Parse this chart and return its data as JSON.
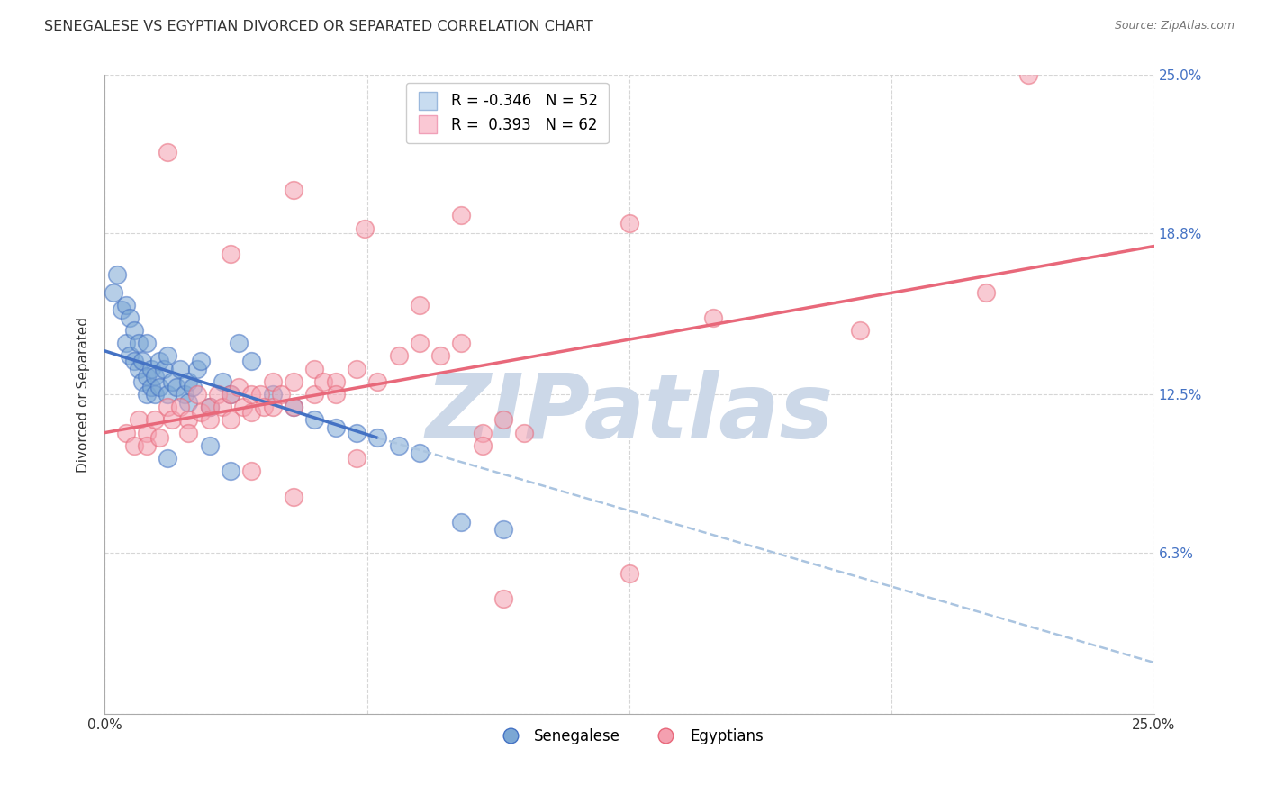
{
  "title": "SENEGALESE VS EGYPTIAN DIVORCED OR SEPARATED CORRELATION CHART",
  "source": "Source: ZipAtlas.com",
  "ylabel": "Divorced or Separated",
  "xmin": 0.0,
  "xmax": 25.0,
  "ymin": 0.0,
  "ymax": 25.0,
  "ytick_positions": [
    0.0,
    6.3,
    12.5,
    18.8,
    25.0
  ],
  "ytick_labels": [
    "",
    "6.3%",
    "12.5%",
    "18.8%",
    "25.0%"
  ],
  "xtick_positions": [
    0.0,
    6.25,
    12.5,
    18.75,
    25.0
  ],
  "xtick_labels": [
    "0.0%",
    "",
    "",
    "",
    "25.0%"
  ],
  "background_color": "#ffffff",
  "grid_color": "#cccccc",
  "watermark": "ZIPatlas",
  "watermark_color": "#ccd8e8",
  "blue_scatter": [
    [
      0.2,
      16.5
    ],
    [
      0.3,
      17.2
    ],
    [
      0.4,
      15.8
    ],
    [
      0.5,
      16.0
    ],
    [
      0.5,
      14.5
    ],
    [
      0.6,
      15.5
    ],
    [
      0.6,
      14.0
    ],
    [
      0.7,
      15.0
    ],
    [
      0.7,
      13.8
    ],
    [
      0.8,
      14.5
    ],
    [
      0.8,
      13.5
    ],
    [
      0.9,
      13.8
    ],
    [
      0.9,
      13.0
    ],
    [
      1.0,
      14.5
    ],
    [
      1.0,
      13.2
    ],
    [
      1.0,
      12.5
    ],
    [
      1.1,
      13.5
    ],
    [
      1.1,
      12.8
    ],
    [
      1.2,
      13.2
    ],
    [
      1.2,
      12.5
    ],
    [
      1.3,
      13.8
    ],
    [
      1.3,
      12.8
    ],
    [
      1.4,
      13.5
    ],
    [
      1.5,
      14.0
    ],
    [
      1.5,
      12.5
    ],
    [
      1.6,
      13.0
    ],
    [
      1.7,
      12.8
    ],
    [
      1.8,
      13.5
    ],
    [
      1.9,
      12.5
    ],
    [
      2.0,
      13.0
    ],
    [
      2.0,
      12.2
    ],
    [
      2.1,
      12.8
    ],
    [
      2.2,
      13.5
    ],
    [
      2.3,
      13.8
    ],
    [
      2.5,
      12.0
    ],
    [
      2.8,
      13.0
    ],
    [
      3.0,
      12.5
    ],
    [
      3.2,
      14.5
    ],
    [
      3.5,
      13.8
    ],
    [
      4.0,
      12.5
    ],
    [
      4.5,
      12.0
    ],
    [
      5.0,
      11.5
    ],
    [
      5.5,
      11.2
    ],
    [
      6.0,
      11.0
    ],
    [
      6.5,
      10.8
    ],
    [
      7.0,
      10.5
    ],
    [
      7.5,
      10.2
    ],
    [
      8.5,
      7.5
    ],
    [
      9.5,
      7.2
    ],
    [
      1.5,
      10.0
    ],
    [
      2.5,
      10.5
    ],
    [
      3.0,
      9.5
    ]
  ],
  "pink_scatter": [
    [
      0.5,
      11.0
    ],
    [
      0.7,
      10.5
    ],
    [
      0.8,
      11.5
    ],
    [
      1.0,
      11.0
    ],
    [
      1.0,
      10.5
    ],
    [
      1.2,
      11.5
    ],
    [
      1.3,
      10.8
    ],
    [
      1.5,
      12.0
    ],
    [
      1.6,
      11.5
    ],
    [
      1.8,
      12.0
    ],
    [
      2.0,
      11.5
    ],
    [
      2.0,
      11.0
    ],
    [
      2.2,
      12.5
    ],
    [
      2.3,
      11.8
    ],
    [
      2.5,
      12.0
    ],
    [
      2.5,
      11.5
    ],
    [
      2.7,
      12.5
    ],
    [
      2.8,
      12.0
    ],
    [
      3.0,
      12.5
    ],
    [
      3.0,
      11.5
    ],
    [
      3.2,
      12.8
    ],
    [
      3.3,
      12.0
    ],
    [
      3.5,
      12.5
    ],
    [
      3.5,
      11.8
    ],
    [
      3.7,
      12.5
    ],
    [
      3.8,
      12.0
    ],
    [
      4.0,
      13.0
    ],
    [
      4.0,
      12.0
    ],
    [
      4.2,
      12.5
    ],
    [
      4.5,
      13.0
    ],
    [
      4.5,
      12.0
    ],
    [
      5.0,
      13.5
    ],
    [
      5.0,
      12.5
    ],
    [
      5.2,
      13.0
    ],
    [
      5.5,
      13.0
    ],
    [
      5.5,
      12.5
    ],
    [
      6.0,
      13.5
    ],
    [
      6.5,
      13.0
    ],
    [
      7.0,
      14.0
    ],
    [
      7.5,
      14.5
    ],
    [
      8.0,
      14.0
    ],
    [
      8.5,
      14.5
    ],
    [
      9.0,
      11.0
    ],
    [
      9.5,
      11.5
    ],
    [
      4.5,
      20.5
    ],
    [
      6.2,
      19.0
    ],
    [
      8.5,
      19.5
    ],
    [
      3.0,
      18.0
    ],
    [
      12.5,
      19.2
    ],
    [
      7.5,
      16.0
    ],
    [
      14.5,
      15.5
    ],
    [
      18.0,
      15.0
    ],
    [
      21.0,
      16.5
    ],
    [
      9.0,
      10.5
    ],
    [
      10.0,
      11.0
    ],
    [
      4.5,
      8.5
    ],
    [
      6.0,
      10.0
    ],
    [
      3.5,
      9.5
    ],
    [
      9.5,
      4.5
    ],
    [
      12.5,
      5.5
    ],
    [
      22.0,
      25.0
    ],
    [
      1.5,
      22.0
    ]
  ],
  "blue_line_color": "#4472C4",
  "pink_line_color": "#E8687A",
  "blue_dash_color": "#aac4e0",
  "blue_line_start_x": 0.0,
  "blue_line_start_y": 14.2,
  "blue_line_end_x": 6.5,
  "blue_line_end_y": 10.8,
  "blue_dash_end_x": 25.0,
  "blue_dash_end_y": 2.0,
  "pink_line_start_x": 0.0,
  "pink_line_start_y": 11.0,
  "pink_line_end_x": 25.0,
  "pink_line_end_y": 18.3,
  "senegalese_label": "Senegalese",
  "egyptians_label": "Egyptians",
  "senegalese_dot_color": "#7BA7D4",
  "egyptians_dot_color": "#F4A0B0",
  "legend1_label": "R = -0.346   N = 52",
  "legend2_label": "R =  0.393   N = 62"
}
